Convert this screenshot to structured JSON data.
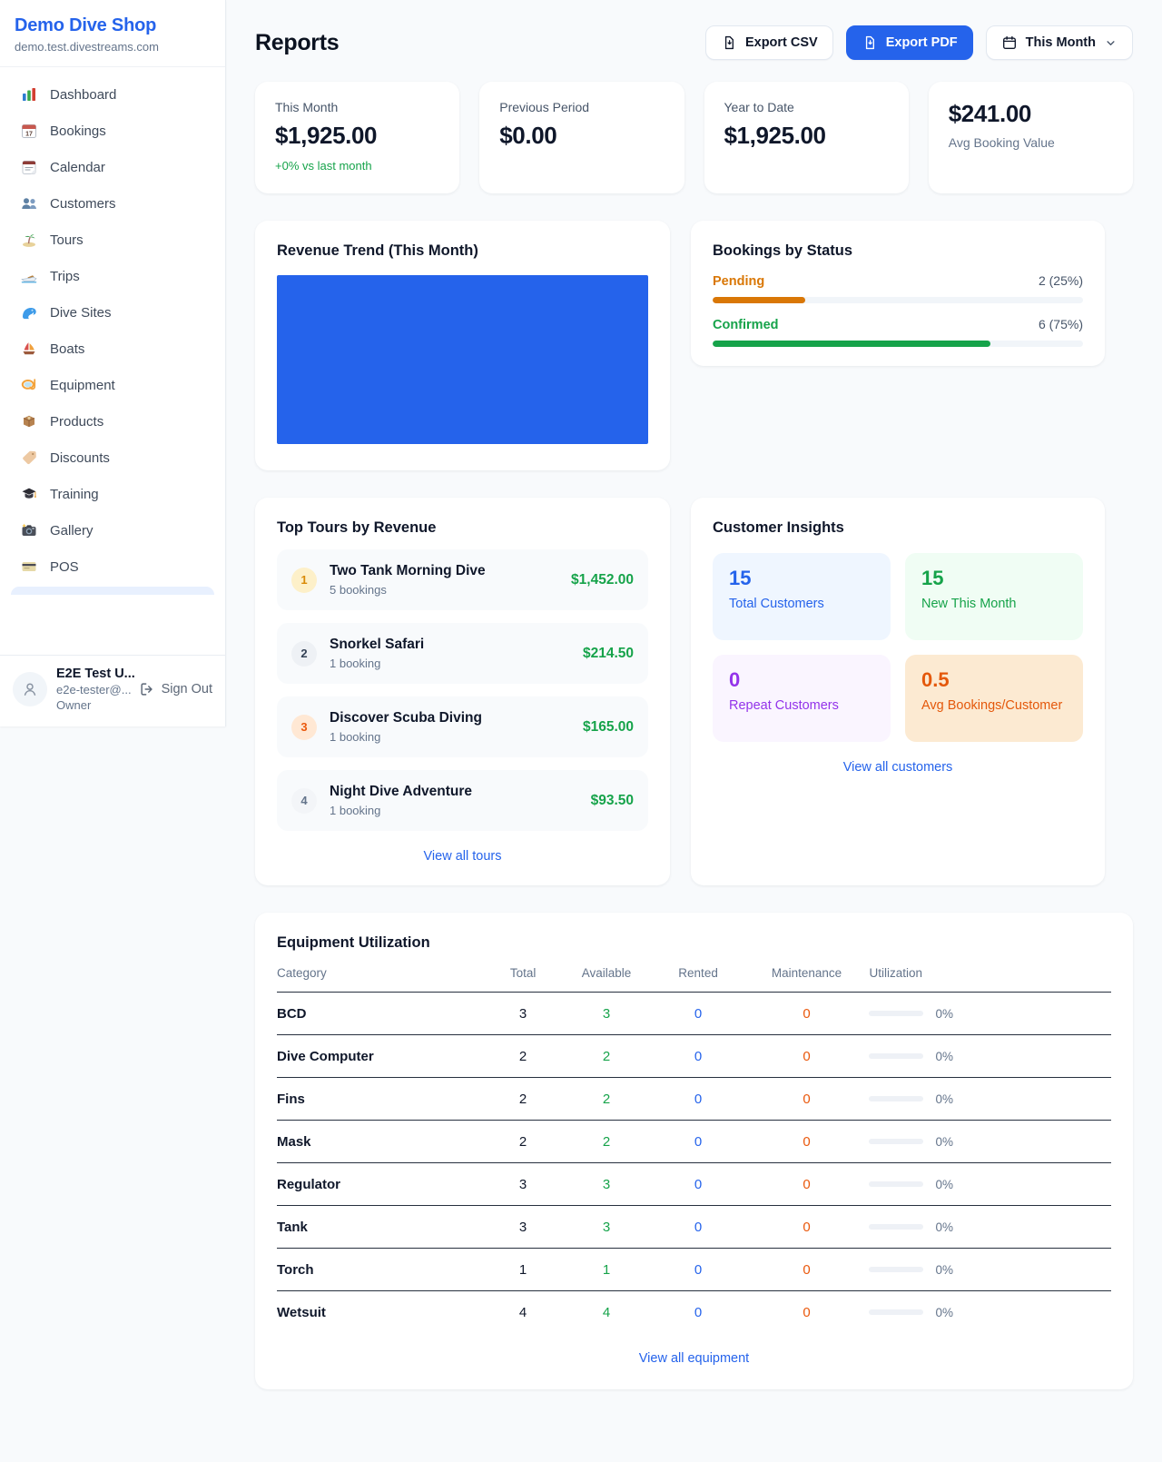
{
  "app": {
    "brand": "Demo Dive Shop",
    "domain": "demo.test.divestreams.com"
  },
  "colors": {
    "accent": "#2563eb",
    "green": "#16a34a",
    "pending_orange": "#d97706",
    "maintenance_orange": "#ea580c",
    "purple": "#9333ea"
  },
  "sidebar": {
    "items": [
      {
        "label": "Dashboard",
        "icon": "bar-chart-icon"
      },
      {
        "label": "Bookings",
        "icon": "calendar-17-icon"
      },
      {
        "label": "Calendar",
        "icon": "tear-calendar-icon"
      },
      {
        "label": "Customers",
        "icon": "people-icon"
      },
      {
        "label": "Tours",
        "icon": "island-icon"
      },
      {
        "label": "Trips",
        "icon": "speedboat-icon"
      },
      {
        "label": "Dive Sites",
        "icon": "wave-icon"
      },
      {
        "label": "Boats",
        "icon": "sailboat-icon"
      },
      {
        "label": "Equipment",
        "icon": "dive-mask-icon"
      },
      {
        "label": "Products",
        "icon": "package-icon"
      },
      {
        "label": "Discounts",
        "icon": "tag-icon"
      },
      {
        "label": "Training",
        "icon": "grad-cap-icon"
      },
      {
        "label": "Gallery",
        "icon": "camera-icon"
      },
      {
        "label": "POS",
        "icon": "credit-card-icon"
      }
    ]
  },
  "user": {
    "name": "E2E Test U...",
    "email": "e2e-tester@...",
    "role": "Owner",
    "sign_out": "Sign Out"
  },
  "header": {
    "title": "Reports",
    "export_csv": "Export CSV",
    "export_pdf": "Export PDF",
    "period": "This Month"
  },
  "stats": {
    "cards": [
      {
        "label": "This Month",
        "value": "$1,925.00",
        "delta": "+0% vs last month"
      },
      {
        "label": "Previous Period",
        "value": "$0.00"
      },
      {
        "label": "Year to Date",
        "value": "$1,925.00"
      },
      {
        "value": "$241.00",
        "label": "Avg Booking Value"
      }
    ]
  },
  "revenue_trend": {
    "title": "Revenue Trend (This Month)",
    "bar_color": "#2563eb",
    "fill_pct": 100
  },
  "bookings_status": {
    "title": "Bookings by Status",
    "rows": [
      {
        "label": "Pending",
        "value": "2 (25%)",
        "pct": 25
      },
      {
        "label": "Confirmed",
        "value": "6 (75%)",
        "pct": 75
      }
    ]
  },
  "top_tours": {
    "title": "Top Tours by Revenue",
    "rows": [
      {
        "rank": "1",
        "name": "Two Tank Morning Dive",
        "bookings": "5 bookings",
        "revenue": "$1,452.00"
      },
      {
        "rank": "2",
        "name": "Snorkel Safari",
        "bookings": "1 booking",
        "revenue": "$214.50"
      },
      {
        "rank": "3",
        "name": "Discover Scuba Diving",
        "bookings": "1 booking",
        "revenue": "$165.00"
      },
      {
        "rank": "4",
        "name": "Night Dive Adventure",
        "bookings": "1 booking",
        "revenue": "$93.50"
      }
    ],
    "view_all": "View all tours"
  },
  "customer_insights": {
    "title": "Customer Insights",
    "tiles": [
      {
        "value": "15",
        "label": "Total Customers"
      },
      {
        "value": "15",
        "label": "New This Month"
      },
      {
        "value": "0",
        "label": "Repeat Customers"
      },
      {
        "value": "0.5",
        "label": "Avg Bookings/Customer"
      }
    ],
    "view_all": "View all customers"
  },
  "equipment": {
    "title": "Equipment Utilization",
    "headers": [
      "Category",
      "Total",
      "Available",
      "Rented",
      "Maintenance",
      "Utilization"
    ],
    "rows": [
      {
        "category": "BCD",
        "total": "3",
        "available": "3",
        "rented": "0",
        "maintenance": "0",
        "utilization": "0%",
        "pct": 0
      },
      {
        "category": "Dive Computer",
        "total": "2",
        "available": "2",
        "rented": "0",
        "maintenance": "0",
        "utilization": "0%",
        "pct": 0
      },
      {
        "category": "Fins",
        "total": "2",
        "available": "2",
        "rented": "0",
        "maintenance": "0",
        "utilization": "0%",
        "pct": 0
      },
      {
        "category": "Mask",
        "total": "2",
        "available": "2",
        "rented": "0",
        "maintenance": "0",
        "utilization": "0%",
        "pct": 0
      },
      {
        "category": "Regulator",
        "total": "3",
        "available": "3",
        "rented": "0",
        "maintenance": "0",
        "utilization": "0%",
        "pct": 0
      },
      {
        "category": "Tank",
        "total": "3",
        "available": "3",
        "rented": "0",
        "maintenance": "0",
        "utilization": "0%",
        "pct": 0
      },
      {
        "category": "Torch",
        "total": "1",
        "available": "1",
        "rented": "0",
        "maintenance": "0",
        "utilization": "0%",
        "pct": 0
      },
      {
        "category": "Wetsuit",
        "total": "4",
        "available": "4",
        "rented": "0",
        "maintenance": "0",
        "utilization": "0%",
        "pct": 0
      }
    ],
    "view_all": "View all equipment"
  }
}
